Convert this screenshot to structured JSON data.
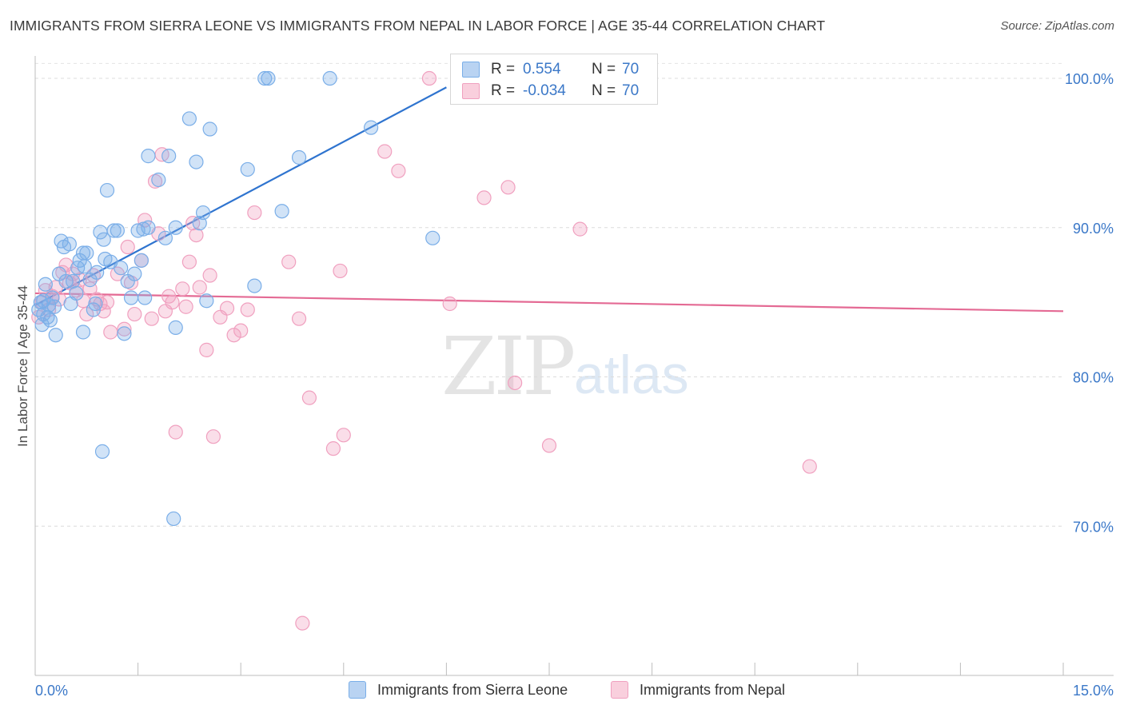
{
  "header": {
    "title": "IMMIGRANTS FROM SIERRA LEONE VS IMMIGRANTS FROM NEPAL IN LABOR FORCE | AGE 35-44 CORRELATION CHART",
    "source": "Source: ZipAtlas.com"
  },
  "watermark": {
    "zip": "ZIP",
    "atlas": "atlas"
  },
  "legend": {
    "r_label": "R =",
    "n_label": "N =",
    "rows": [
      {
        "r": "0.554",
        "n": "70",
        "color": "#7aaee8"
      },
      {
        "r": "-0.034",
        "n": "70",
        "color": "#f0a0bf"
      }
    ]
  },
  "bottom_legend": {
    "items": [
      {
        "label": "Immigrants from Sierra Leone",
        "color": "#7aaee8"
      },
      {
        "label": "Immigrants from Nepal",
        "color": "#f0a0bf"
      }
    ]
  },
  "chart_data": {
    "type": "scatter",
    "title": "IMMIGRANTS FROM SIERRA LEONE VS IMMIGRANTS FROM NEPAL IN LABOR FORCE | AGE 35-44 CORRELATION CHART",
    "xlabel": "",
    "ylabel": "In Labor Force | Age 35-44",
    "xlim": [
      0,
      15
    ],
    "ylim": [
      60,
      101.5
    ],
    "x_tick_labels": [
      "0.0%",
      "15.0%"
    ],
    "y_ticks": [
      70,
      80,
      90,
      100
    ],
    "y_tick_labels": [
      "70.0%",
      "80.0%",
      "90.0%",
      "100.0%"
    ],
    "grid": true,
    "series": [
      {
        "name": "Immigrants from Sierra Leone",
        "color": "#7aaee8",
        "trend": {
          "x": [
            0.0,
            6.0
          ],
          "y": [
            84.8,
            99.4
          ]
        },
        "points": [
          [
            0.05,
            84.5
          ],
          [
            0.08,
            85.0
          ],
          [
            0.1,
            83.5
          ],
          [
            0.12,
            84.2
          ],
          [
            0.15,
            86.2
          ],
          [
            0.18,
            84.0
          ],
          [
            0.2,
            84.8
          ],
          [
            0.25,
            85.3
          ],
          [
            0.3,
            82.8
          ],
          [
            0.35,
            86.9
          ],
          [
            0.38,
            89.1
          ],
          [
            0.42,
            88.7
          ],
          [
            0.45,
            86.4
          ],
          [
            0.5,
            88.9
          ],
          [
            0.55,
            86.4
          ],
          [
            0.6,
            85.6
          ],
          [
            0.65,
            87.8
          ],
          [
            0.7,
            88.3
          ],
          [
            0.72,
            87.4
          ],
          [
            0.75,
            88.3
          ],
          [
            0.8,
            86.5
          ],
          [
            0.85,
            84.5
          ],
          [
            0.7,
            83.0
          ],
          [
            0.9,
            87.0
          ],
          [
            0.95,
            89.7
          ],
          [
            1.0,
            89.2
          ],
          [
            1.05,
            92.5
          ],
          [
            1.1,
            87.7
          ],
          [
            1.15,
            89.8
          ],
          [
            1.2,
            89.8
          ],
          [
            1.25,
            87.3
          ],
          [
            1.3,
            82.9
          ],
          [
            1.35,
            86.4
          ],
          [
            1.4,
            85.3
          ],
          [
            1.45,
            86.9
          ],
          [
            1.5,
            89.8
          ],
          [
            1.55,
            87.8
          ],
          [
            1.6,
            85.3
          ],
          [
            1.65,
            90.0
          ],
          [
            1.65,
            94.8
          ],
          [
            1.8,
            93.2
          ],
          [
            1.9,
            89.3
          ],
          [
            1.95,
            94.8
          ],
          [
            2.05,
            90.0
          ],
          [
            2.05,
            83.3
          ],
          [
            2.25,
            97.3
          ],
          [
            2.35,
            94.4
          ],
          [
            2.4,
            90.3
          ],
          [
            2.45,
            91.0
          ],
          [
            2.5,
            85.1
          ],
          [
            2.55,
            96.6
          ],
          [
            3.1,
            93.9
          ],
          [
            3.2,
            86.1
          ],
          [
            3.35,
            100.0
          ],
          [
            3.4,
            100.0
          ],
          [
            3.6,
            91.1
          ],
          [
            3.85,
            94.7
          ],
          [
            4.3,
            100.0
          ],
          [
            4.9,
            96.7
          ],
          [
            5.8,
            89.3
          ],
          [
            0.98,
            75.0
          ],
          [
            2.02,
            70.5
          ],
          [
            0.28,
            84.7
          ],
          [
            0.52,
            84.9
          ],
          [
            0.62,
            87.3
          ],
          [
            0.88,
            84.9
          ],
          [
            0.22,
            83.8
          ],
          [
            1.02,
            87.9
          ],
          [
            1.58,
            89.9
          ],
          [
            0.12,
            85.1
          ]
        ]
      },
      {
        "name": "Immigrants from Nepal",
        "color": "#f0a0bf",
        "trend": {
          "x": [
            0.0,
            15.0
          ],
          "y": [
            85.6,
            84.4
          ]
        },
        "points": [
          [
            0.05,
            84.0
          ],
          [
            0.1,
            85.0
          ],
          [
            0.15,
            85.8
          ],
          [
            0.2,
            84.5
          ],
          [
            0.25,
            85.4
          ],
          [
            0.3,
            86.0
          ],
          [
            0.35,
            85.2
          ],
          [
            0.4,
            87.0
          ],
          [
            0.45,
            87.5
          ],
          [
            0.5,
            86.3
          ],
          [
            0.55,
            86.9
          ],
          [
            0.6,
            85.8
          ],
          [
            0.65,
            86.5
          ],
          [
            0.7,
            85.1
          ],
          [
            0.75,
            84.2
          ],
          [
            0.8,
            85.9
          ],
          [
            0.85,
            86.8
          ],
          [
            0.9,
            85.2
          ],
          [
            0.95,
            84.9
          ],
          [
            1.0,
            84.4
          ],
          [
            1.05,
            85.0
          ],
          [
            1.1,
            83.0
          ],
          [
            1.2,
            86.9
          ],
          [
            1.3,
            83.2
          ],
          [
            1.35,
            88.7
          ],
          [
            1.4,
            86.3
          ],
          [
            1.45,
            84.2
          ],
          [
            1.55,
            87.8
          ],
          [
            1.6,
            90.5
          ],
          [
            1.7,
            83.9
          ],
          [
            1.75,
            93.1
          ],
          [
            1.8,
            89.6
          ],
          [
            1.9,
            84.4
          ],
          [
            1.95,
            85.4
          ],
          [
            2.0,
            85.0
          ],
          [
            2.05,
            76.3
          ],
          [
            2.15,
            85.9
          ],
          [
            2.2,
            84.7
          ],
          [
            2.25,
            87.7
          ],
          [
            2.3,
            90.3
          ],
          [
            2.35,
            89.5
          ],
          [
            2.4,
            86.0
          ],
          [
            2.5,
            81.8
          ],
          [
            2.55,
            86.8
          ],
          [
            2.6,
            76.0
          ],
          [
            2.7,
            84.0
          ],
          [
            2.8,
            84.6
          ],
          [
            2.9,
            82.8
          ],
          [
            3.0,
            83.1
          ],
          [
            3.1,
            84.5
          ],
          [
            3.2,
            91.0
          ],
          [
            3.7,
            87.7
          ],
          [
            3.85,
            83.9
          ],
          [
            3.9,
            63.5
          ],
          [
            4.0,
            78.6
          ],
          [
            4.35,
            75.2
          ],
          [
            4.45,
            87.1
          ],
          [
            4.5,
            76.1
          ],
          [
            5.1,
            95.1
          ],
          [
            5.3,
            93.8
          ],
          [
            5.75,
            100.0
          ],
          [
            6.05,
            84.9
          ],
          [
            6.55,
            92.0
          ],
          [
            6.9,
            92.7
          ],
          [
            7.0,
            79.6
          ],
          [
            7.5,
            75.4
          ],
          [
            7.75,
            100.0
          ],
          [
            7.95,
            89.9
          ],
          [
            11.3,
            74.0
          ],
          [
            1.85,
            94.9
          ]
        ]
      }
    ]
  }
}
